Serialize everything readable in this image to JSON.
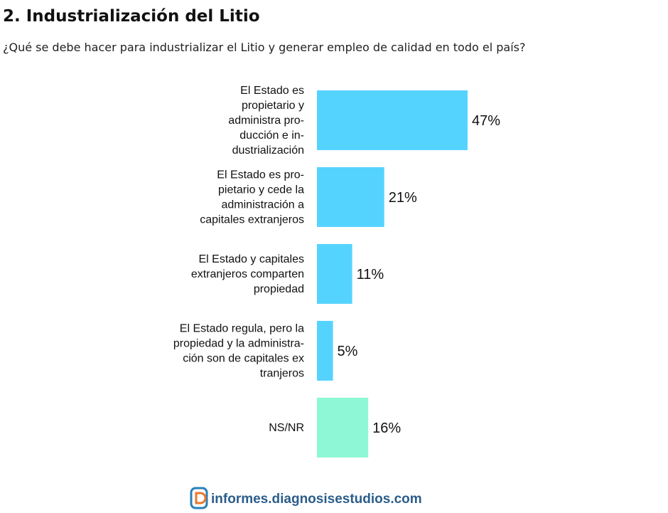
{
  "chart_data": {
    "type": "bar",
    "orientation": "horizontal",
    "title": "2. Industrialización del Litio",
    "subtitle": "¿Qué se debe hacer para industrializar el Litio y generar empleo de calidad en todo el país?",
    "categories": [
      "El Estado es\npropietario y\nadministra pro-\nducción e in-\ndustrialización",
      "El Estado es pro-\npietario y cede la\nadministración a\ncapitales extranjeros",
      "El Estado y capitales\nextranjeros comparten\npropiedad",
      "El Estado regula, pero la\npropiedad y la administra-\nción son de capitales ex\ntranjeros",
      "NS/NR"
    ],
    "values": [
      47,
      21,
      11,
      5,
      16
    ],
    "value_labels": [
      "47%",
      "21%",
      "11%",
      "5%",
      "16%"
    ],
    "colors": [
      "#55d3ff",
      "#55d3ff",
      "#55d3ff",
      "#55d3ff",
      "#8ef7d6"
    ],
    "footer": "informes.diagnosisestudios.com"
  }
}
